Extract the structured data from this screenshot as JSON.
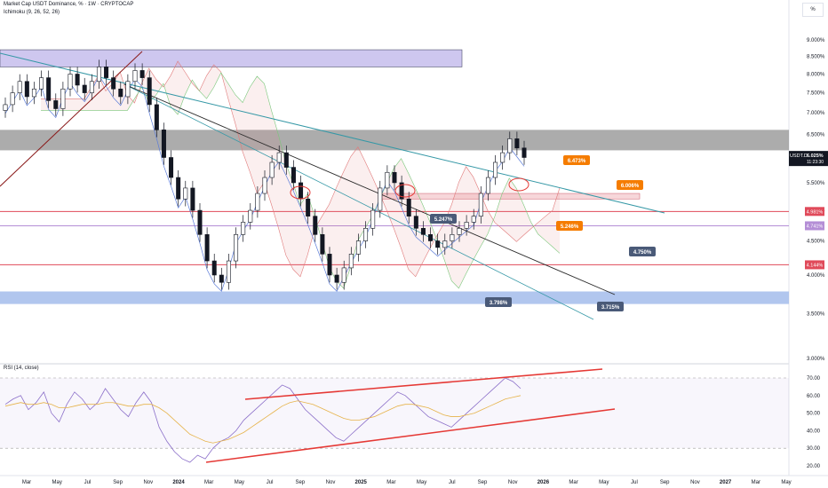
{
  "header": {
    "title": "Market Cap USDT Dominance, % · 1W · CRYPTOCAP",
    "indicator": "Ichimoku (9, 26, 52, 26)",
    "rsi_label": "RSI (14, close)",
    "scale_button": "%"
  },
  "colors": {
    "candle": "#131722",
    "zone_purple": "#c9c2ee",
    "zone_gray": "#9e9e9e",
    "zone_blue": "#a9c0ec",
    "zone_pink": "#f7d3d7",
    "trend_teal": "#3598a6",
    "trend_black": "#2a2a2a",
    "trend_red": "#e53935",
    "level_red": "#e04a5a",
    "level_violet": "#b48ed6",
    "label_orange": "#f57c00",
    "label_slate": "#4a5a78",
    "ichimoku_green": "#7ac77a",
    "ichimoku_red": "#e07a7a",
    "ichimoku_blue": "#5a7bd8",
    "rsi_line": "#8b6fc9",
    "rsi_ma": "#e6b34a"
  },
  "chart_data": [
    {
      "type": "candlestick",
      "title": "Market Cap USDT Dominance, % · 1W · CRYPTOCAP",
      "x_axis": {
        "type": "date",
        "labels": [
          "Mar",
          "May",
          "Jul",
          "Sep",
          "Nov",
          "2024",
          "Mar",
          "May",
          "Jul",
          "Sep",
          "Nov",
          "2025",
          "Mar",
          "May",
          "Jul",
          "Sep",
          "Nov",
          "2026",
          "Mar",
          "May",
          "Jul",
          "Sep",
          "Nov",
          "2027",
          "Mar",
          "May"
        ]
      },
      "y_axis": {
        "unit": "%",
        "log_scale": true,
        "range": [
          3.0,
          9.2
        ],
        "ticks": [
          "3.000%",
          "3.500%",
          "4.000%",
          "4.500%",
          "5.000%",
          "5.500%",
          "6.000%",
          "6.500%",
          "7.000%",
          "7.500%",
          "8.000%",
          "8.500%",
          "9.000%"
        ]
      },
      "last_price_label": {
        "ticker": "USDT.D",
        "value": "6.025%",
        "countdown": "11:23:30"
      },
      "price_labels": [
        {
          "text": "6.473%",
          "color": "orange"
        },
        {
          "text": "6.006%",
          "color": "orange"
        },
        {
          "text": "5.246%",
          "color": "orange"
        },
        {
          "text": "5.247%",
          "color": "slate"
        },
        {
          "text": "4.750%",
          "color": "slate"
        },
        {
          "text": "3.798%",
          "color": "slate"
        },
        {
          "text": "3.715%",
          "color": "slate"
        }
      ],
      "axis_level_labels": [
        {
          "text": "4.981%",
          "color": "red"
        },
        {
          "text": "4.741%",
          "color": "violet"
        },
        {
          "text": "4.144%",
          "color": "red"
        }
      ],
      "zones": [
        {
          "name": "purple-resistance",
          "from": 8.2,
          "to": 8.7
        },
        {
          "name": "gray-resistance",
          "from": 6.15,
          "to": 6.6
        },
        {
          "name": "pink-band",
          "from": 5.2,
          "to": 5.3
        },
        {
          "name": "blue-support",
          "from": 3.62,
          "to": 3.78
        }
      ],
      "levels": [
        4.981,
        4.741,
        4.144
      ],
      "close_series": [
        7.2,
        7.5,
        7.8,
        7.4,
        7.6,
        7.9,
        7.3,
        7.1,
        7.6,
        8.0,
        7.7,
        7.5,
        7.8,
        8.2,
        7.9,
        7.6,
        7.4,
        7.8,
        8.1,
        7.9,
        7.2,
        6.6,
        6.0,
        5.6,
        5.2,
        5.4,
        5.0,
        4.6,
        4.2,
        4.0,
        3.9,
        4.2,
        4.6,
        4.8,
        5.0,
        5.3,
        5.6,
        5.9,
        6.1,
        5.8,
        5.5,
        5.2,
        4.9,
        4.6,
        4.3,
        4.0,
        3.9,
        4.1,
        4.3,
        4.5,
        4.7,
        5.0,
        5.4,
        5.7,
        5.5,
        5.2,
        4.9,
        4.7,
        4.6,
        4.5,
        4.4,
        4.5,
        4.6,
        4.7,
        4.8,
        4.9,
        5.3,
        5.6,
        5.9,
        6.1,
        6.4,
        6.2,
        6.0
      ]
    },
    {
      "type": "line",
      "title": "RSI (14, close)",
      "y_axis": {
        "range": [
          20,
          72
        ],
        "ticks": [
          "20.00",
          "30.00",
          "40.00",
          "50.00",
          "60.00",
          "70.00"
        ]
      },
      "series": [
        {
          "values": [
            55,
            58,
            60,
            52,
            56,
            62,
            50,
            45,
            55,
            62,
            58,
            52,
            56,
            64,
            58,
            52,
            48,
            56,
            62,
            56,
            42,
            34,
            28,
            24,
            22,
            26,
            24,
            30,
            34,
            36,
            40,
            46,
            50,
            54,
            58,
            62,
            66,
            64,
            58,
            52,
            48,
            44,
            40,
            36,
            34,
            38,
            42,
            46,
            50,
            54,
            58,
            62,
            60,
            56,
            52,
            48,
            46,
            44,
            42,
            46,
            50,
            54,
            58,
            62,
            66,
            70,
            68,
            64
          ]
        },
        {
          "values": [
            54,
            55,
            56,
            55,
            55,
            56,
            55,
            53,
            53,
            54,
            55,
            55,
            55,
            56,
            56,
            55,
            54,
            54,
            55,
            55,
            53,
            50,
            46,
            42,
            38,
            36,
            34,
            33,
            34,
            35,
            37,
            39,
            42,
            45,
            48,
            51,
            54,
            56,
            57,
            56,
            55,
            53,
            51,
            49,
            47,
            46,
            46,
            47,
            48,
            50,
            52,
            54,
            55,
            55,
            54,
            53,
            51,
            49,
            48,
            48,
            49,
            50,
            52,
            54,
            56,
            58,
            59,
            60
          ]
        }
      ]
    }
  ]
}
